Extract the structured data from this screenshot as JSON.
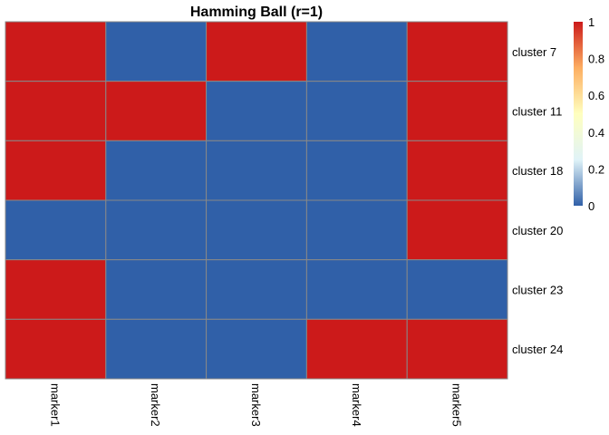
{
  "chart_data": {
    "type": "heatmap",
    "title": "Hamming Ball (r=1)",
    "rows": [
      "cluster 7",
      "cluster 11",
      "cluster 18",
      "cluster 20",
      "cluster 23",
      "cluster 24"
    ],
    "columns": [
      "marker1",
      "marker2",
      "marker3",
      "marker4",
      "marker5"
    ],
    "values": [
      [
        1,
        0,
        1,
        0,
        1
      ],
      [
        1,
        1,
        0,
        0,
        1
      ],
      [
        1,
        0,
        0,
        0,
        1
      ],
      [
        0,
        0,
        0,
        0,
        1
      ],
      [
        1,
        0,
        0,
        0,
        0
      ],
      [
        1,
        0,
        0,
        1,
        1
      ]
    ],
    "color_scale": {
      "min": 0,
      "max": 1,
      "stops": [
        "#3060a8",
        "#e0f3f8",
        "#ffffbf",
        "#fdae61",
        "#cc1a1a"
      ],
      "ticks": [
        "0",
        "0.2",
        "0.4",
        "0.6",
        "0.8",
        "1"
      ]
    },
    "cell_border_color": "#888888",
    "legend_position": "right"
  }
}
